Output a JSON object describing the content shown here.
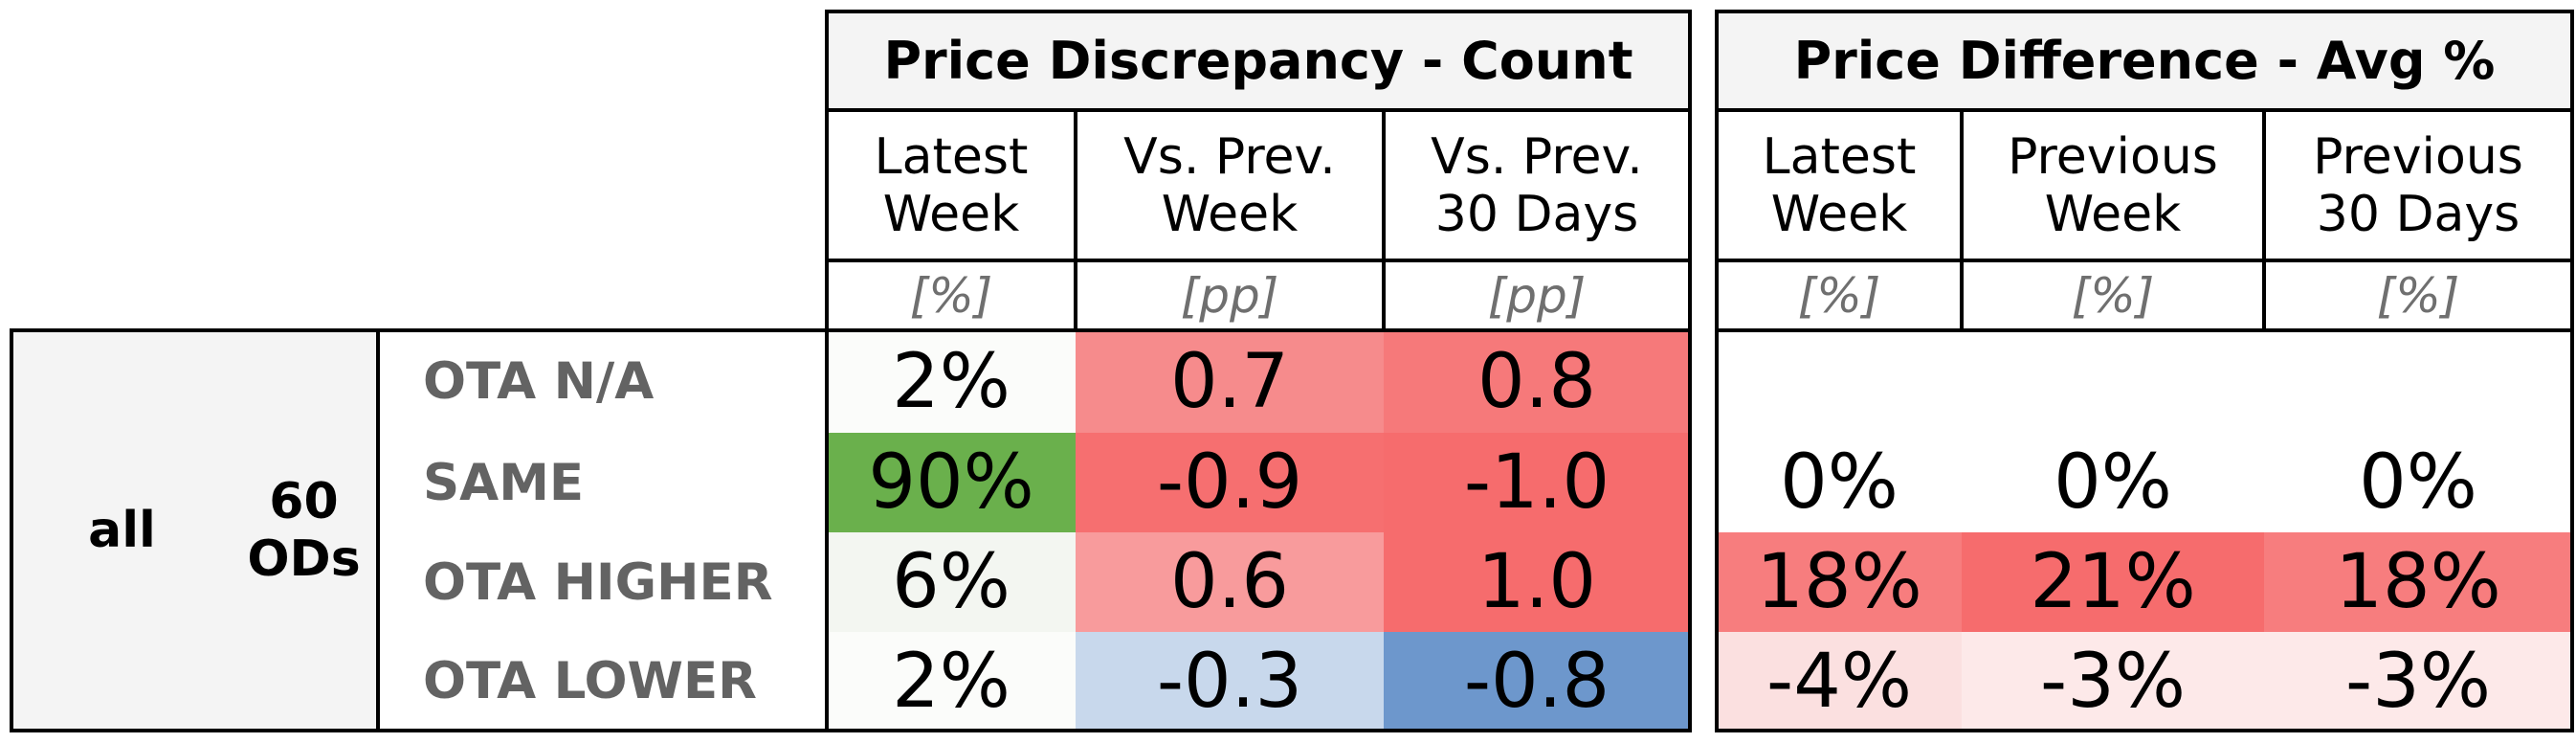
{
  "chart_data": {
    "type": "table",
    "groups": [
      {
        "title": "Price Discrepancy - Count",
        "columns": [
          {
            "label": "Latest\nWeek",
            "unit": "[%]"
          },
          {
            "label": "Vs. Prev.\nWeek",
            "unit": "[pp]"
          },
          {
            "label": "Vs. Prev.\n30 Days",
            "unit": "[pp]"
          }
        ]
      },
      {
        "title": "Price Difference - Avg %",
        "columns": [
          {
            "label": "Latest\nWeek",
            "unit": "[%]"
          },
          {
            "label": "Previous\nWeek",
            "unit": "[%]"
          },
          {
            "label": "Previous\n30 Days",
            "unit": "[%]"
          }
        ]
      }
    ],
    "segment": "all",
    "od_count": "60\nODs",
    "rows": [
      {
        "label": "OTA N/A",
        "count": [
          "2%",
          "0.7",
          "0.8"
        ],
        "count_colors": [
          "#fbfcfa",
          "#f68b8c",
          "#f6797a"
        ],
        "avg": [
          "",
          "",
          ""
        ],
        "avg_colors": [
          "#ffffff",
          "#ffffff",
          "#ffffff"
        ]
      },
      {
        "label": "SAME",
        "count": [
          "90%",
          "-0.9",
          "-1.0"
        ],
        "count_colors": [
          "#6ab04c",
          "#f66f70",
          "#f66c6d"
        ],
        "avg": [
          "0%",
          "0%",
          "0%"
        ],
        "avg_colors": [
          "#ffffff",
          "#ffffff",
          "#ffffff"
        ]
      },
      {
        "label": "OTA HIGHER",
        "count": [
          "6%",
          "0.6",
          "1.0"
        ],
        "count_colors": [
          "#f3f6f1",
          "#f89b9c",
          "#f66c6d"
        ],
        "avg": [
          "18%",
          "21%",
          "18%"
        ],
        "avg_colors": [
          "#f77d7e",
          "#f66c6d",
          "#f77d7e"
        ]
      },
      {
        "label": "OTA LOWER",
        "count": [
          "2%",
          "-0.3",
          "-0.8"
        ],
        "count_colors": [
          "#fbfcfa",
          "#c8d8ec",
          "#6d97cc"
        ],
        "avg": [
          "-4%",
          "-3%",
          "-3%"
        ],
        "avg_colors": [
          "#fbe0e0",
          "#fde9e9",
          "#fde9e9"
        ]
      }
    ]
  }
}
